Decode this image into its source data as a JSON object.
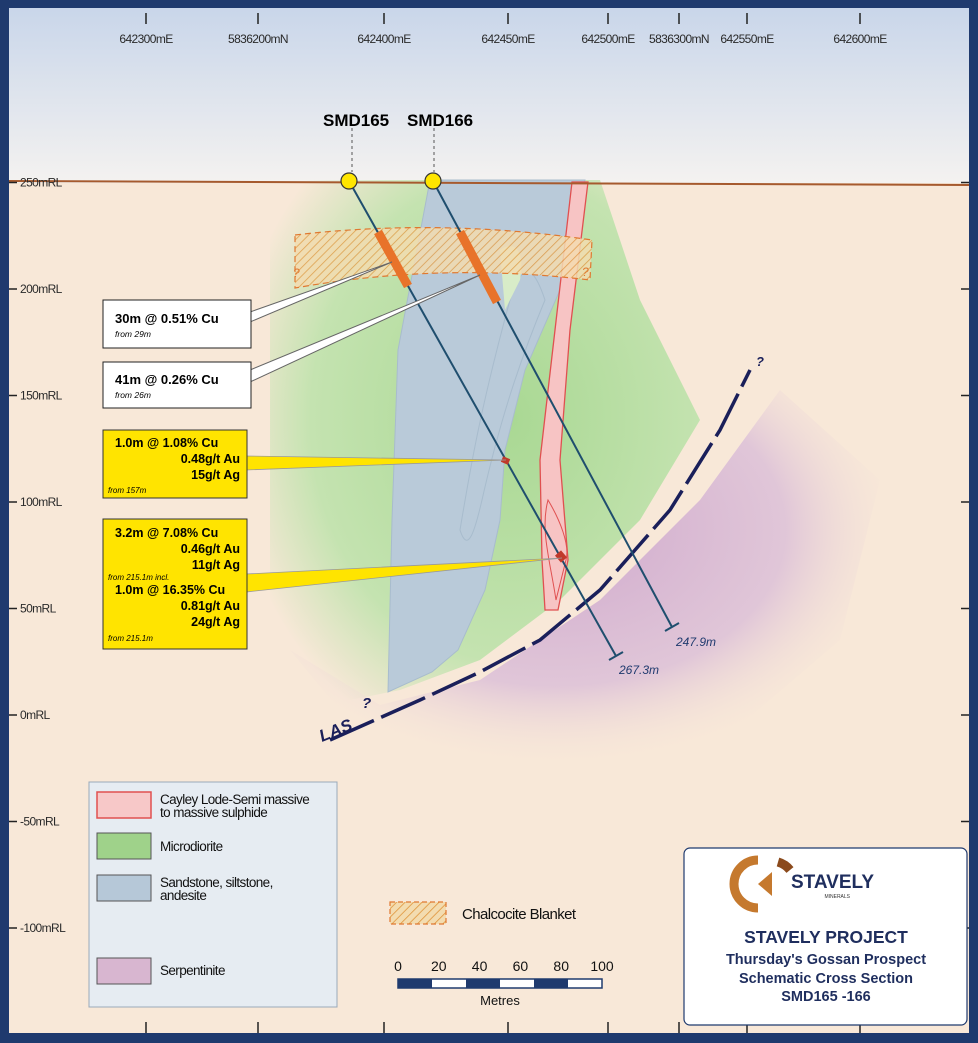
{
  "eastings": [
    {
      "label": "642300mE"
    },
    {
      "label": "5836200mN"
    },
    {
      "label": "642400mE"
    },
    {
      "label": "642450mE"
    },
    {
      "label": "642500mE"
    },
    {
      "label": "5836300mN"
    },
    {
      "label": "642550mE"
    },
    {
      "label": "642600mE"
    }
  ],
  "levels": [
    {
      "label": "250mRL",
      "rl": 250
    },
    {
      "label": "200mRL",
      "rl": 200
    },
    {
      "label": "150mRL",
      "rl": 150
    },
    {
      "label": "100mRL",
      "rl": 100
    },
    {
      "label": "50mRL",
      "rl": 50
    },
    {
      "label": "0mRL",
      "rl": 0
    },
    {
      "label": "-50mRL",
      "rl": -50
    },
    {
      "label": "-100mRL",
      "rl": -100
    }
  ],
  "holes": [
    {
      "name": "SMD165",
      "end_depth": "267.3m"
    },
    {
      "name": "SMD166",
      "end_depth": "247.9m"
    }
  ],
  "intercepts": [
    {
      "lines": [
        "30m @ 0.51% Cu"
      ],
      "from": "from 29m",
      "style": "white"
    },
    {
      "lines": [
        "41m @ 0.26% Cu"
      ],
      "from": "from 26m",
      "style": "white"
    },
    {
      "lines": [
        "1.0m @ 1.08% Cu",
        "0.48g/t Au",
        "15g/t Ag"
      ],
      "from": "from 157m",
      "style": "yellow"
    },
    {
      "lines": [
        "3.2m @ 7.08% Cu",
        "0.46g/t Au",
        "11g/t Ag"
      ],
      "from": "from 215.1m incl.",
      "lines2": [
        "1.0m @ 16.35% Cu",
        "0.81g/t Au",
        "24g/t Ag"
      ],
      "from2": "from 215.1m",
      "style": "yellow"
    }
  ],
  "unknown_marker": "?",
  "fault_label": "LAS",
  "legend": [
    {
      "label": "Cayley Lode-Semi massive to massive sulphide",
      "color": "#f7c8c8",
      "border": "#e05050"
    },
    {
      "label": "Microdiorite",
      "color": "#9fd28a",
      "border": "#555555"
    },
    {
      "label": "Sandstone, siltstone, andesite",
      "color": "#b6c8d8",
      "border": "#555555"
    },
    {
      "label": "Serpentinite",
      "color": "#d8b6d0",
      "border": "#555555"
    }
  ],
  "legend_lines": {
    "cayley": [
      "Cayley Lode-Semi massive",
      "to massive sulphide"
    ],
    "sand": [
      "Sandstone, siltstone,",
      "andesite"
    ]
  },
  "chalcocite_label": "Chalcocite Blanket",
  "scale": {
    "ticks": [
      "0",
      "20",
      "40",
      "60",
      "80",
      "100"
    ],
    "unit": "Metres"
  },
  "title_box": {
    "logo_text": "STAVELY",
    "logo_sub": "MINERALS",
    "lines": [
      "STAVELY PROJECT",
      "Thursday's Gossan Prospect",
      "Schematic Cross Section",
      "SMD165 -166"
    ]
  },
  "colors": {
    "frame": "#1f3a6e",
    "sky_top": "#cdd8ea",
    "ground": "#f8e8d8",
    "surface": "#a0522d",
    "hole": "#1f4e6e",
    "intercept": "#e8732a",
    "yellow_box": "#ffe400"
  }
}
